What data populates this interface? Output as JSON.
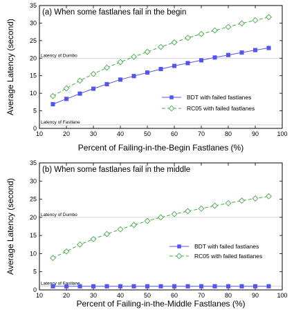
{
  "chart_data": [
    {
      "type": "line",
      "title": "(a) When some fastlanes fail in the begin",
      "xlabel": "Percent of Failing-in-the-Begin Fastlanes (%)",
      "ylabel": "Average Latency (second)",
      "xlim": [
        10,
        100
      ],
      "ylim": [
        0,
        35
      ],
      "xticks": [
        "10",
        "20",
        "30",
        "40",
        "50",
        "60",
        "70",
        "80",
        "90",
        "100"
      ],
      "yticks": [
        "0",
        "5",
        "10",
        "15",
        "20",
        "25",
        "30",
        "35"
      ],
      "x": [
        15,
        20,
        25,
        30,
        35,
        40,
        45,
        50,
        55,
        60,
        65,
        70,
        75,
        80,
        85,
        90,
        95
      ],
      "series": [
        {
          "name": "BDT with failed fastlanes",
          "color": "#5555ee",
          "marker": "square",
          "line": "solid",
          "values": [
            6.9,
            8.4,
            9.9,
            11.3,
            12.6,
            13.9,
            14.9,
            15.9,
            16.9,
            17.8,
            18.6,
            19.4,
            20.2,
            20.9,
            21.6,
            22.3,
            22.9
          ]
        },
        {
          "name": "RC05 with failed fastlanes",
          "color": "#44aa44",
          "marker": "diamond",
          "line": "dashed",
          "values": [
            9.2,
            11.4,
            13.6,
            15.5,
            17.3,
            18.9,
            20.4,
            21.8,
            23.2,
            24.5,
            25.8,
            26.9,
            27.9,
            28.9,
            29.9,
            30.8,
            31.7
          ]
        }
      ],
      "reference_lines": [
        {
          "label": "Latency of Dumbo",
          "y": 20
        },
        {
          "label": "Latency of Fastlane",
          "y": 1
        }
      ],
      "legend": "right-middle"
    },
    {
      "type": "line",
      "title": "(b) When some fastlanes fail in the middle",
      "xlabel": "Percent of Failing-in-the-Middle Fastlanes (%)",
      "ylabel": "Average Latency (second)",
      "xlim": [
        10,
        100
      ],
      "ylim": [
        0,
        35
      ],
      "xticks": [
        "10",
        "20",
        "30",
        "40",
        "50",
        "60",
        "70",
        "80",
        "90",
        "100"
      ],
      "yticks": [
        "0",
        "5",
        "10",
        "15",
        "20",
        "25",
        "30",
        "35"
      ],
      "x": [
        15,
        20,
        25,
        30,
        35,
        40,
        45,
        50,
        55,
        60,
        65,
        70,
        75,
        80,
        85,
        90,
        95
      ],
      "series": [
        {
          "name": "BDT with failed fastlanes",
          "color": "#5555ee",
          "marker": "square",
          "line": "solid",
          "values": [
            1.0,
            1.0,
            1.0,
            1.0,
            1.0,
            1.0,
            1.0,
            1.0,
            1.0,
            1.0,
            1.0,
            1.0,
            1.0,
            1.0,
            1.0,
            1.0,
            1.0
          ]
        },
        {
          "name": "RC05 with failed fastlanes",
          "color": "#44aa44",
          "marker": "diamond",
          "line": "dashed",
          "values": [
            8.8,
            10.6,
            12.5,
            14.0,
            15.4,
            16.7,
            17.9,
            19.0,
            20.0,
            20.9,
            21.7,
            22.4,
            23.2,
            23.9,
            24.6,
            25.2,
            25.8
          ]
        }
      ],
      "reference_lines": [
        {
          "label": "Latency of Dumbo",
          "y": 20
        },
        {
          "label": "Latency of Fastlane",
          "y": 1
        }
      ],
      "legend": "right-middle"
    }
  ]
}
